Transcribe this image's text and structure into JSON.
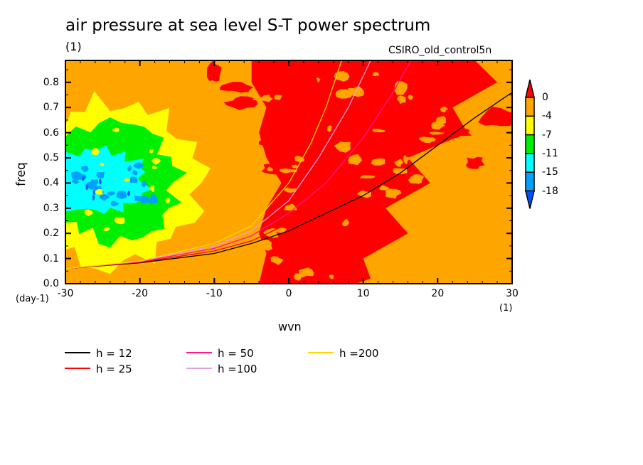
{
  "chart_data": {
    "type": "heatmap",
    "subtype": "filled-contour with overlaid dispersion curves",
    "title": "air pressure at sea level S-T power spectrum",
    "units_label": "(1)",
    "model_label": "CSIRO_old_control5n",
    "xlabel": "wvn",
    "x_unit": "(1)",
    "ylabel": "freq",
    "y_unit": "(day-1)",
    "xlim": [
      -30,
      30
    ],
    "ylim": [
      0.0,
      0.887
    ],
    "x_ticks": [
      "-30",
      "-20",
      "-10",
      "0",
      "10",
      "20",
      "30"
    ],
    "y_ticks": [
      "0.0",
      "0.1",
      "0.2",
      "0.3",
      "0.4",
      "0.5",
      "0.6",
      "0.7",
      "0.8"
    ],
    "colorbar": {
      "levels": [
        "0",
        "-4",
        "-7",
        "-11",
        "-15",
        "-18"
      ],
      "colors": [
        "#ff0000",
        "#ffa500",
        "#ffff00",
        "#00ee00",
        "#00ffff",
        "#00a0ff",
        "#0050ff"
      ],
      "extend": "both"
    },
    "regions": [
      {
        "level": "> 0",
        "color": "#ff0000",
        "description": "high power band along eastward-propagating waves, wvn -5..25, all freq"
      },
      {
        "level": "-4 to 0",
        "color": "#ffa500",
        "description": "background"
      },
      {
        "level": "-7 to -4",
        "color": "#ffff00",
        "description": "low power, wvn -30..-12, freq 0.1..0.7"
      },
      {
        "level": "-11 to -7",
        "color": "#00ee00",
        "description": "wvn -30..-16, freq 0.2..0.6"
      },
      {
        "level": "-15 to -11",
        "color": "#00ffff",
        "description": "wvn -30..-20, freq 0.3..0.5"
      },
      {
        "level": "-18 to -15",
        "color": "#00a0ff",
        "description": "scattered patches, wvn -29..-18, freq 0.3..0.45"
      }
    ],
    "series": [
      {
        "name": "h = 12",
        "color": "#000000",
        "x": [
          -30,
          -20,
          -10,
          -5,
          0,
          5,
          10,
          15,
          20,
          25,
          30
        ],
        "y": [
          0.06,
          0.083,
          0.12,
          0.16,
          0.21,
          0.28,
          0.35,
          0.44,
          0.55,
          0.66,
          0.76
        ]
      },
      {
        "name": "h = 25",
        "color": "#ff0000",
        "x": [
          -30,
          -20,
          -10,
          -5,
          0,
          5,
          10,
          15,
          20,
          23.8
        ],
        "y": [
          0.06,
          0.085,
          0.13,
          0.17,
          0.24,
          0.34,
          0.46,
          0.6,
          0.76,
          0.887
        ]
      },
      {
        "name": "h = 50",
        "color": "#ff1493",
        "x": [
          -30,
          -20,
          -10,
          -5,
          0,
          5,
          10,
          14,
          16.4
        ],
        "y": [
          0.06,
          0.087,
          0.14,
          0.19,
          0.28,
          0.4,
          0.58,
          0.76,
          0.887
        ]
      },
      {
        "name": "h =100",
        "color": "#e0a0e0",
        "x": [
          -30,
          -20,
          -10,
          -5,
          0,
          4,
          8,
          11
        ],
        "y": [
          0.06,
          0.089,
          0.15,
          0.21,
          0.33,
          0.5,
          0.7,
          0.887
        ]
      },
      {
        "name": "h =200",
        "color": "#ffd700",
        "x": [
          -30,
          -20,
          -10,
          -5,
          0,
          3,
          5,
          7.1
        ],
        "y": [
          0.06,
          0.09,
          0.16,
          0.23,
          0.4,
          0.56,
          0.7,
          0.887
        ]
      }
    ]
  }
}
